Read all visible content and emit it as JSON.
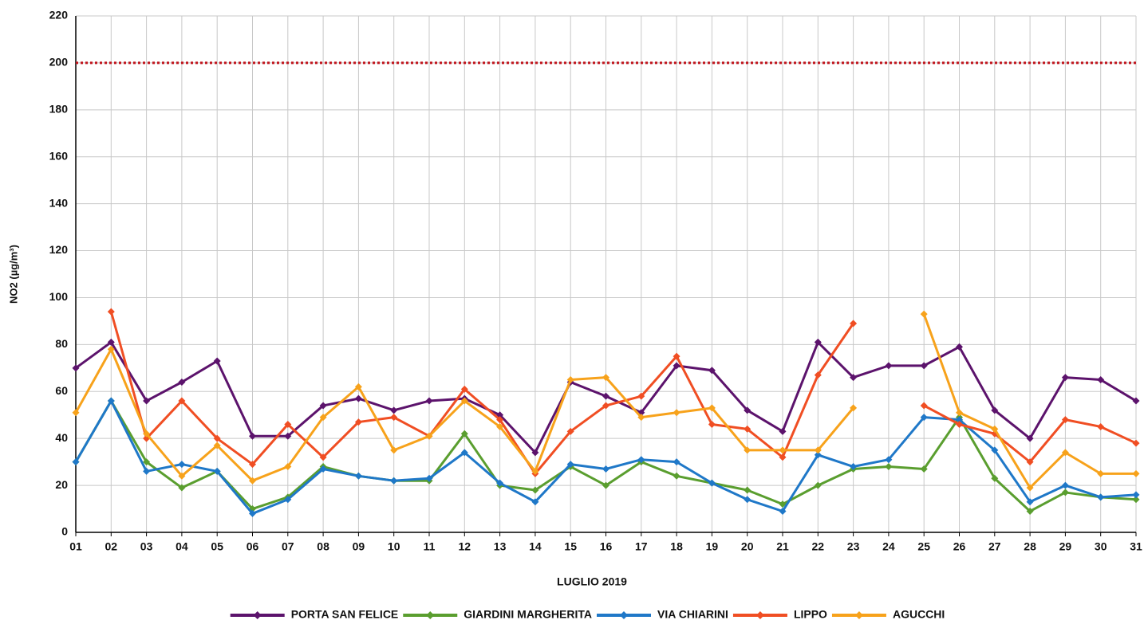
{
  "chart_data": {
    "type": "line",
    "x_label": "LUGLIO 2019",
    "y_label": "NO2 (µg/m³)",
    "categories": [
      "01",
      "02",
      "03",
      "04",
      "05",
      "06",
      "07",
      "08",
      "09",
      "10",
      "11",
      "12",
      "13",
      "14",
      "15",
      "16",
      "17",
      "18",
      "19",
      "20",
      "21",
      "22",
      "23",
      "24",
      "25",
      "26",
      "27",
      "28",
      "29",
      "30",
      "31"
    ],
    "ylim": [
      0,
      220
    ],
    "yticks": [
      0,
      20,
      40,
      60,
      80,
      100,
      120,
      140,
      160,
      180,
      200,
      220
    ],
    "grid": true,
    "legend": "bottom",
    "reference_line": {
      "value": 200,
      "color": "#c0141c"
    },
    "series": [
      {
        "name": "PORTA SAN FELICE",
        "color": "#5c136c",
        "values": [
          70,
          81,
          56,
          64,
          73,
          41,
          41,
          54,
          57,
          52,
          56,
          57,
          50,
          34,
          64,
          58,
          51,
          71,
          69,
          52,
          43,
          81,
          66,
          71,
          71,
          79,
          52,
          40,
          66,
          65,
          56
        ]
      },
      {
        "name": "GIARDINI MARGHERITA",
        "color": "#5a9e2f",
        "values": [
          30,
          56,
          30,
          19,
          26,
          10,
          15,
          28,
          24,
          22,
          22,
          42,
          20,
          18,
          28,
          20,
          30,
          24,
          21,
          18,
          12,
          20,
          27,
          28,
          27,
          49,
          23,
          9,
          17,
          15,
          14
        ]
      },
      {
        "name": "VIA CHIARINI",
        "color": "#1f78c8",
        "values": [
          30,
          56,
          26,
          29,
          26,
          8,
          14,
          27,
          24,
          22,
          23,
          34,
          21,
          13,
          29,
          27,
          31,
          30,
          21,
          14,
          9,
          33,
          28,
          31,
          49,
          48,
          35,
          13,
          20,
          15,
          16
        ]
      },
      {
        "name": "LIPPO",
        "color": "#f04e23",
        "values": [
          null,
          94,
          40,
          56,
          40,
          29,
          46,
          32,
          47,
          49,
          41,
          61,
          48,
          25,
          43,
          54,
          58,
          75,
          46,
          44,
          32,
          67,
          89,
          null,
          54,
          46,
          42,
          30,
          48,
          45,
          38
        ]
      },
      {
        "name": "AGUCCHI",
        "color": "#f7a21b",
        "values": [
          51,
          78,
          42,
          24,
          37,
          22,
          28,
          49,
          62,
          35,
          41,
          56,
          45,
          26,
          65,
          66,
          49,
          51,
          53,
          35,
          35,
          35,
          53,
          null,
          93,
          51,
          44,
          19,
          34,
          25,
          25
        ]
      }
    ]
  }
}
